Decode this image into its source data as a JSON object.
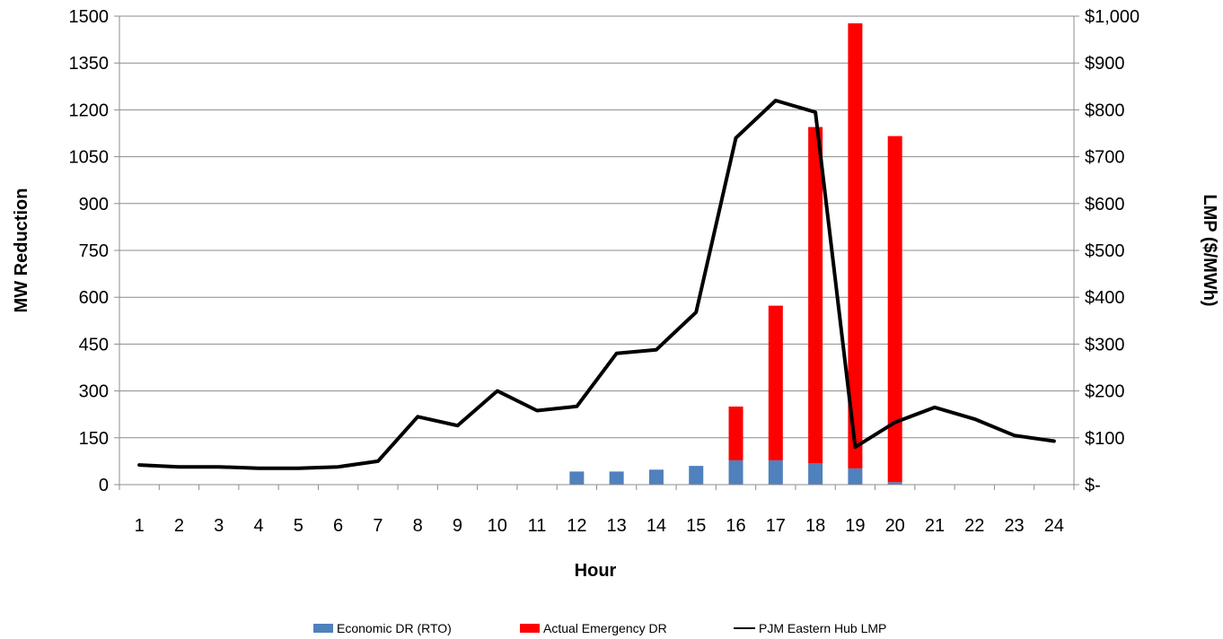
{
  "chart_data": {
    "type": "bar",
    "xlabel": "Hour",
    "ylabel": "MW Reduction",
    "y2label": "LMP ($/MWh)",
    "categories": [
      "1",
      "2",
      "3",
      "4",
      "5",
      "6",
      "7",
      "8",
      "9",
      "10",
      "11",
      "12",
      "13",
      "14",
      "15",
      "16",
      "17",
      "18",
      "19",
      "20",
      "21",
      "22",
      "23",
      "24"
    ],
    "ylim": [
      0,
      1500
    ],
    "yticks": [
      "0",
      "150",
      "300",
      "450",
      "600",
      "750",
      "900",
      "1050",
      "1200",
      "1350",
      "1500"
    ],
    "y2lim": [
      0,
      1000
    ],
    "y2ticks": [
      "$-",
      "$100",
      "$200",
      "$300",
      "$400",
      "$500",
      "$600",
      "$700",
      "$800",
      "$900",
      "$1,000"
    ],
    "grid": true,
    "legend_position": "bottom",
    "stacked": true,
    "series": [
      {
        "name": "Economic DR (RTO)",
        "type": "bar",
        "axis": "left",
        "color": "#4f81bd",
        "values": [
          0,
          0,
          0,
          0,
          0,
          0,
          0,
          0,
          0,
          0,
          0,
          42,
          42,
          48,
          60,
          78,
          78,
          68,
          52,
          8,
          0,
          0,
          0,
          0
        ]
      },
      {
        "name": "Actual Emergency  DR",
        "type": "bar",
        "axis": "left",
        "color": "#ff0000",
        "values": [
          0,
          0,
          0,
          0,
          0,
          0,
          0,
          0,
          0,
          0,
          0,
          0,
          0,
          0,
          0,
          172,
          495,
          1077,
          1425,
          1108,
          0,
          0,
          0,
          0
        ]
      },
      {
        "name": "PJM Eastern Hub LMP",
        "type": "line",
        "axis": "right",
        "color": "#000000",
        "values": [
          42,
          38,
          38,
          35,
          35,
          38,
          50,
          145,
          126,
          200,
          158,
          167,
          280,
          288,
          368,
          740,
          820,
          795,
          80,
          133,
          165,
          140,
          105,
          93
        ]
      }
    ]
  }
}
